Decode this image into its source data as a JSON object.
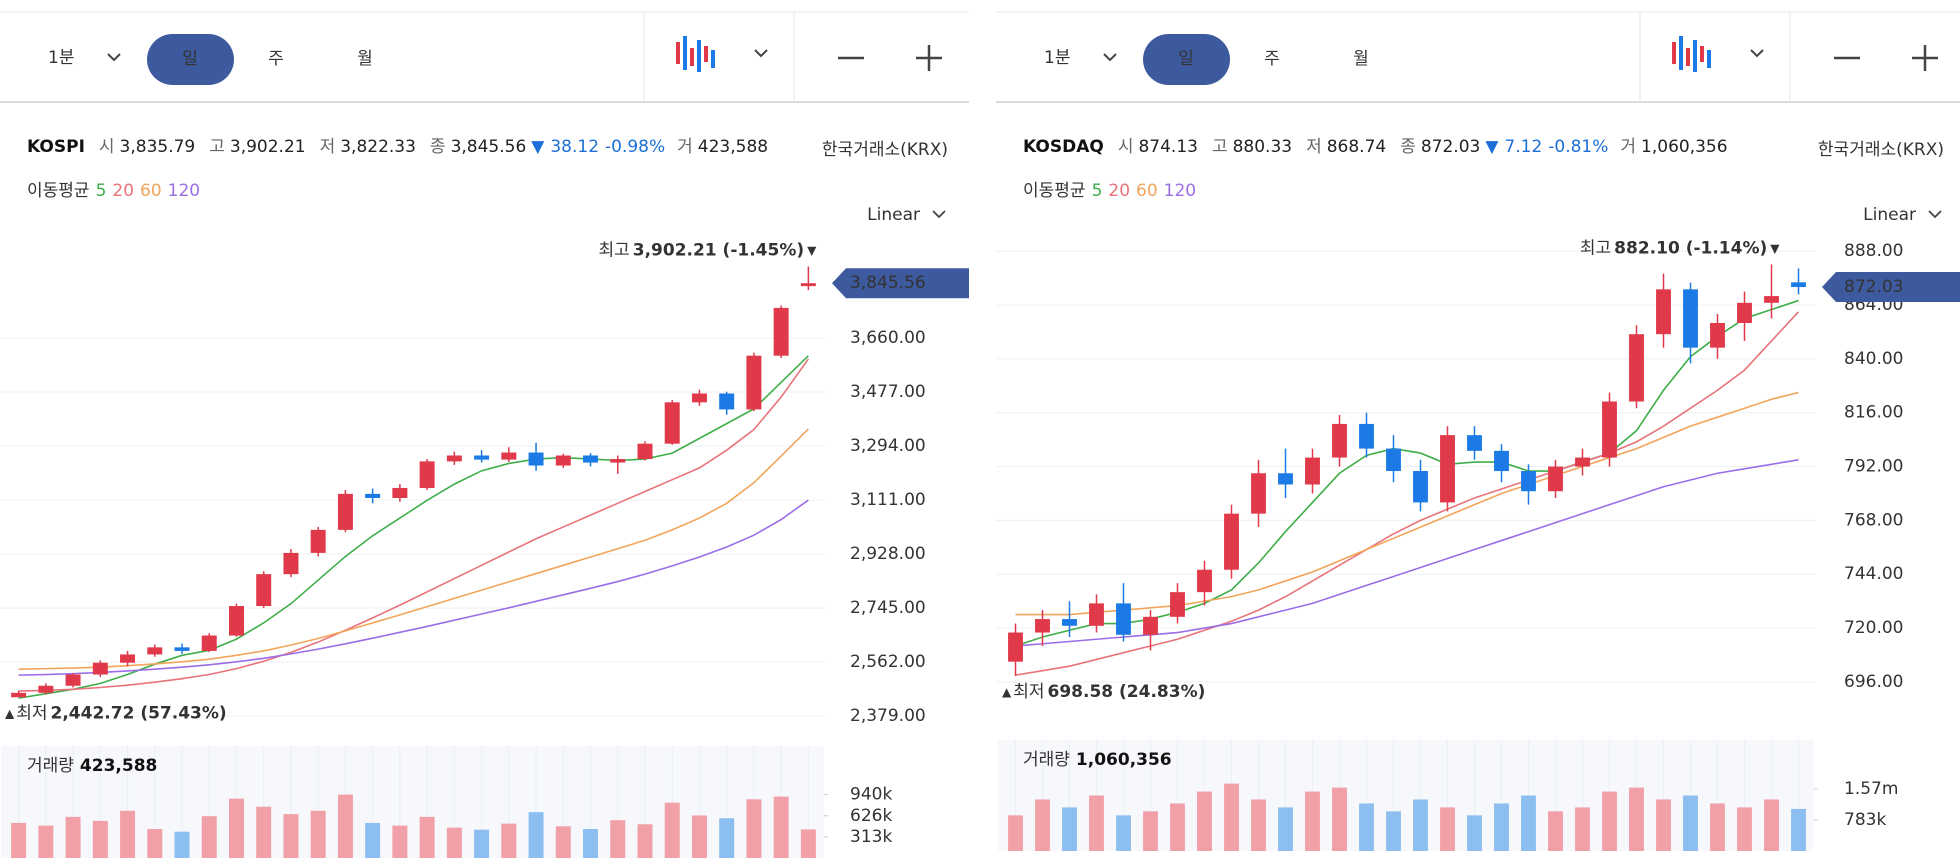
{
  "panels": [
    {
      "toolbar": {
        "interval": "1분",
        "tabs": [
          "일",
          "주",
          "월"
        ],
        "active_tab": 0
      },
      "header": {
        "symbol": "KOSPI",
        "fields": [
          {
            "label": "시",
            "value": "3,835.79"
          },
          {
            "label": "고",
            "value": "3,902.21"
          },
          {
            "label": "저",
            "value": "3,822.33"
          },
          {
            "label": "종",
            "value": "3,845.56"
          }
        ],
        "change": {
          "arrow": "▼",
          "amount": "38.12",
          "percent": "-0.98%"
        },
        "volume": {
          "label": "거",
          "value": "423,588"
        },
        "exchange": "한국거래소(KRX)"
      },
      "ma_legend": "이동평균",
      "scale_mode": "Linear",
      "chart": {
        "type": "candlestick",
        "up_color": "#e0394a",
        "down_color": "#1b7ae6",
        "ylim": [
          2349,
          3992
        ],
        "yticks": [
          {
            "value": 2379,
            "label": "2,379.00"
          },
          {
            "value": 2562,
            "label": "2,562.00"
          },
          {
            "value": 2745,
            "label": "2,745.00"
          },
          {
            "value": 2928,
            "label": "2,928.00"
          },
          {
            "value": 3111,
            "label": "3,111.00"
          },
          {
            "value": 3294,
            "label": "3,294.00"
          },
          {
            "value": 3477,
            "label": "3,477.00"
          },
          {
            "value": 3660,
            "label": "3,660.00"
          }
        ],
        "candles": [
          [
            2443,
            2465,
            2443,
            2458
          ],
          [
            2458,
            2490,
            2452,
            2482
          ],
          [
            2482,
            2525,
            2476,
            2520
          ],
          [
            2520,
            2568,
            2512,
            2560
          ],
          [
            2560,
            2600,
            2548,
            2588
          ],
          [
            2588,
            2622,
            2580,
            2612
          ],
          [
            2612,
            2625,
            2590,
            2600
          ],
          [
            2600,
            2660,
            2596,
            2652
          ],
          [
            2652,
            2760,
            2648,
            2752
          ],
          [
            2752,
            2870,
            2745,
            2860
          ],
          [
            2860,
            2945,
            2850,
            2932
          ],
          [
            2932,
            3020,
            2920,
            3010
          ],
          [
            3010,
            3145,
            3002,
            3132
          ],
          [
            3132,
            3150,
            3100,
            3118
          ],
          [
            3118,
            3165,
            3105,
            3152
          ],
          [
            3152,
            3250,
            3145,
            3242
          ],
          [
            3242,
            3275,
            3230,
            3262
          ],
          [
            3262,
            3280,
            3238,
            3248
          ],
          [
            3248,
            3290,
            3240,
            3272
          ],
          [
            3272,
            3305,
            3210,
            3228
          ],
          [
            3228,
            3268,
            3220,
            3262
          ],
          [
            3262,
            3270,
            3225,
            3238
          ],
          [
            3238,
            3262,
            3200,
            3250
          ],
          [
            3250,
            3310,
            3245,
            3302
          ],
          [
            3302,
            3450,
            3298,
            3442
          ],
          [
            3442,
            3485,
            3430,
            3472
          ],
          [
            3472,
            3478,
            3400,
            3418
          ],
          [
            3418,
            3610,
            3412,
            3600
          ],
          [
            3600,
            3770,
            3592,
            3762
          ],
          [
            3835.79,
            3902.21,
            3822.33,
            3845.56
          ]
        ],
        "series": [
          {
            "name": "5",
            "color": "#3fae49",
            "values": [
              2440,
              2455,
              2470,
              2490,
              2520,
              2555,
              2585,
              2602,
              2640,
              2695,
              2760,
              2840,
              2920,
              2990,
              3050,
              3110,
              3165,
              3210,
              3235,
              3250,
              3255,
              3250,
              3245,
              3250,
              3270,
              3320,
              3370,
              3420,
              3510,
              3600
            ]
          },
          {
            "name": "20",
            "color": "#e8737a",
            "values": [
              2464,
              2466,
              2470,
              2476,
              2484,
              2494,
              2506,
              2520,
              2540,
              2565,
              2595,
              2630,
              2670,
              2712,
              2755,
              2800,
              2845,
              2890,
              2935,
              2980,
              3020,
              3060,
              3100,
              3140,
              3180,
              3220,
              3280,
              3350,
              3460,
              3589
            ]
          },
          {
            "name": "60",
            "color": "#f2a55a",
            "values": [
              2538,
              2540,
              2542,
              2545,
              2550,
              2556,
              2563,
              2572,
              2585,
              2600,
              2620,
              2642,
              2668,
              2695,
              2722,
              2750,
              2778,
              2806,
              2834,
              2862,
              2890,
              2918,
              2946,
              2975,
              3010,
              3050,
              3100,
              3170,
              3260,
              3352
            ]
          },
          {
            "name": "120",
            "color": "#9b6ee8",
            "values": [
              2518,
              2520,
              2523,
              2527,
              2532,
              2538,
              2545,
              2553,
              2563,
              2575,
              2590,
              2606,
              2624,
              2643,
              2663,
              2683,
              2704,
              2725,
              2746,
              2768,
              2790,
              2812,
              2835,
              2860,
              2888,
              2918,
              2952,
              2992,
              3045,
              3111
            ]
          }
        ],
        "high_label": {
          "prefix": "최고",
          "text": "3,902.21 (-1.45%)",
          "marker": "▼"
        },
        "low_label": {
          "prefix": "최저",
          "text": "2,442.72 (57.43%)",
          "marker": "▲"
        },
        "last_label": "3,845.56"
      },
      "volume": {
        "label": "거래량",
        "value": "423,588",
        "up_color": "#f0a0a6",
        "down_color": "#8cbff0",
        "ylim": [
          0,
          1660000
        ],
        "yticks": [
          {
            "value": 313000,
            "label": "313k"
          },
          {
            "value": 626000,
            "label": "626k"
          },
          {
            "value": 940000,
            "label": "940k"
          }
        ],
        "values": [
          520000,
          480000,
          610000,
          550000,
          700000,
          430000,
          390000,
          620000,
          880000,
          760000,
          650000,
          700000,
          940000,
          520000,
          480000,
          610000,
          450000,
          420000,
          510000,
          680000,
          470000,
          430000,
          560000,
          500000,
          820000,
          630000,
          590000,
          870000,
          910000,
          423588
        ]
      }
    },
    {
      "toolbar": {
        "interval": "1분",
        "tabs": [
          "일",
          "주",
          "월"
        ],
        "active_tab": 0
      },
      "header": {
        "symbol": "KOSDAQ",
        "fields": [
          {
            "label": "시",
            "value": "874.13"
          },
          {
            "label": "고",
            "value": "880.33"
          },
          {
            "label": "저",
            "value": "868.74"
          },
          {
            "label": "종",
            "value": "872.03"
          }
        ],
        "change": {
          "arrow": "▼",
          "amount": "7.12",
          "percent": "-0.81%"
        },
        "volume": {
          "label": "거",
          "value": "1,060,356"
        },
        "exchange": "한국거래소(KRX)"
      },
      "ma_legend": "이동평균",
      "scale_mode": "Linear",
      "chart": {
        "type": "candlestick",
        "up_color": "#e0394a",
        "down_color": "#1b7ae6",
        "ylim": [
          679,
          893
        ],
        "yticks": [
          {
            "value": 696,
            "label": "696.00"
          },
          {
            "value": 720,
            "label": "720.00"
          },
          {
            "value": 744,
            "label": "744.00"
          },
          {
            "value": 768,
            "label": "768.00"
          },
          {
            "value": 792,
            "label": "792.00"
          },
          {
            "value": 816,
            "label": "816.00"
          },
          {
            "value": 840,
            "label": "840.00"
          },
          {
            "value": 864,
            "label": "864.00"
          },
          {
            "value": 888,
            "label": "888.00"
          }
        ],
        "candles": [
          [
            705,
            722,
            698.58,
            718
          ],
          [
            718,
            728,
            712,
            724
          ],
          [
            724,
            732,
            716,
            721
          ],
          [
            721,
            735,
            718,
            731
          ],
          [
            731,
            740,
            714,
            717
          ],
          [
            717,
            728,
            710,
            725
          ],
          [
            725,
            740,
            722,
            736
          ],
          [
            736,
            750,
            730,
            746
          ],
          [
            746,
            775,
            742,
            771
          ],
          [
            771,
            795,
            765,
            789
          ],
          [
            789,
            800,
            778,
            784
          ],
          [
            784,
            800,
            780,
            796
          ],
          [
            796,
            815,
            792,
            811
          ],
          [
            811,
            816,
            796,
            800
          ],
          [
            800,
            806,
            785,
            790
          ],
          [
            790,
            795,
            772,
            776
          ],
          [
            776,
            810,
            772,
            806
          ],
          [
            806,
            810,
            795,
            799
          ],
          [
            799,
            802,
            785,
            790
          ],
          [
            790,
            793,
            775,
            781
          ],
          [
            781,
            795,
            778,
            792
          ],
          [
            792,
            800,
            788,
            796
          ],
          [
            796,
            825,
            792,
            821
          ],
          [
            821,
            855,
            818,
            851
          ],
          [
            851,
            878,
            845,
            871
          ],
          [
            871,
            874,
            838,
            845
          ],
          [
            845,
            860,
            840,
            856
          ],
          [
            856,
            870,
            848,
            865
          ],
          [
            865,
            882.1,
            858,
            868
          ],
          [
            874.13,
            880.33,
            868.74,
            872.03
          ]
        ],
        "series": [
          {
            "name": "5",
            "color": "#3fae49",
            "values": [
              712,
              716,
              719,
              722,
              722,
              724,
              727,
              731,
              737,
              749,
              763,
              776,
              789,
              797,
              800,
              798,
              793,
              794,
              794,
              790,
              790,
              794,
              798,
              808,
              826,
              841,
              850,
              858,
              862,
              866
            ]
          },
          {
            "name": "20",
            "color": "#e8737a",
            "values": [
              699,
              701,
              703,
              706,
              709,
              712,
              715,
              719,
              723,
              728,
              734,
              741,
              748,
              755,
              762,
              768,
              773,
              778,
              782,
              786,
              790,
              794,
              798,
              803,
              810,
              818,
              826,
              835,
              848,
              861
            ]
          },
          {
            "name": "60",
            "color": "#f2a55a",
            "values": [
              726,
              726,
              726,
              727,
              728,
              729,
              730,
              732,
              734,
              737,
              741,
              745,
              750,
              755,
              760,
              765,
              770,
              775,
              780,
              784,
              788,
              792,
              796,
              800,
              805,
              810,
              814,
              818,
              822,
              825
            ]
          },
          {
            "name": "120",
            "color": "#9b6ee8",
            "values": [
              712,
              713,
              714,
              715,
              716,
              717,
              718,
              720,
              722,
              725,
              728,
              731,
              735,
              739,
              743,
              747,
              751,
              755,
              759,
              763,
              767,
              771,
              775,
              779,
              783,
              786,
              789,
              791,
              793,
              795
            ]
          }
        ],
        "high_label": {
          "prefix": "최고",
          "text": "882.10 (-1.14%)",
          "marker": "▼"
        },
        "low_label": {
          "prefix": "최저",
          "text": "698.58 (24.83%)",
          "marker": "▲"
        },
        "last_label": "872.03"
      },
      "volume": {
        "label": "거래량",
        "value": "1,060,356",
        "up_color": "#f0a0a6",
        "down_color": "#8cbff0",
        "ylim": [
          0,
          2800000
        ],
        "yticks": [
          {
            "value": 783000,
            "label": "783k"
          },
          {
            "value": 1570000,
            "label": "1.57m"
          }
        ],
        "values": [
          900000,
          1300000,
          1100000,
          1400000,
          900000,
          1000000,
          1200000,
          1500000,
          1700000,
          1300000,
          1100000,
          1500000,
          1600000,
          1200000,
          1000000,
          1300000,
          1100000,
          900000,
          1200000,
          1400000,
          1000000,
          1100000,
          1500000,
          1600000,
          1300000,
          1400000,
          1200000,
          1100000,
          1300000,
          1060356
        ]
      }
    }
  ]
}
